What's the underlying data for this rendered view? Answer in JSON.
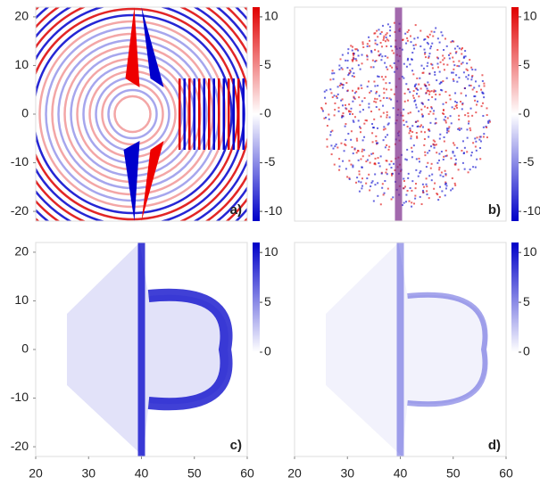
{
  "chart_data": [
    {
      "type": "heatmap",
      "panel_label": "a)",
      "xlim": [
        20,
        60
      ],
      "ylim": [
        -22,
        22
      ],
      "yticks": [
        -20,
        -10,
        0,
        10,
        20
      ],
      "colorbar": {
        "clim": [
          -11,
          11
        ],
        "ticks": [
          -10,
          -5,
          0,
          5,
          10
        ],
        "colormap": [
          "#0000c8",
          "#ffffff",
          "#e00000"
        ]
      }
    },
    {
      "type": "heatmap",
      "panel_label": "b)",
      "xlim": [
        20,
        60
      ],
      "ylim": [
        -22,
        22
      ],
      "colorbar": {
        "clim": [
          -11,
          11
        ],
        "ticks": [
          -10,
          -5,
          0,
          5,
          10
        ],
        "colormap": [
          "#0000c8",
          "#ffffff",
          "#e00000"
        ]
      }
    },
    {
      "type": "heatmap",
      "panel_label": "c)",
      "xlim": [
        20,
        60
      ],
      "ylim": [
        -22,
        22
      ],
      "xticks": [
        20,
        30,
        40,
        50,
        60
      ],
      "yticks": [
        -20,
        -10,
        0,
        10,
        20
      ],
      "colorbar": {
        "clim": [
          0,
          11
        ],
        "ticks": [
          0,
          5,
          10
        ],
        "colormap": [
          "#ffffff",
          "#0000c8"
        ]
      }
    },
    {
      "type": "heatmap",
      "panel_label": "d)",
      "xlim": [
        20,
        60
      ],
      "ylim": [
        -22,
        22
      ],
      "xticks": [
        20,
        30,
        40,
        50,
        60
      ],
      "colorbar": {
        "clim": [
          0,
          11
        ],
        "ticks": [
          0,
          5,
          10
        ],
        "colormap": [
          "#ffffff",
          "#0000c8"
        ]
      }
    }
  ]
}
